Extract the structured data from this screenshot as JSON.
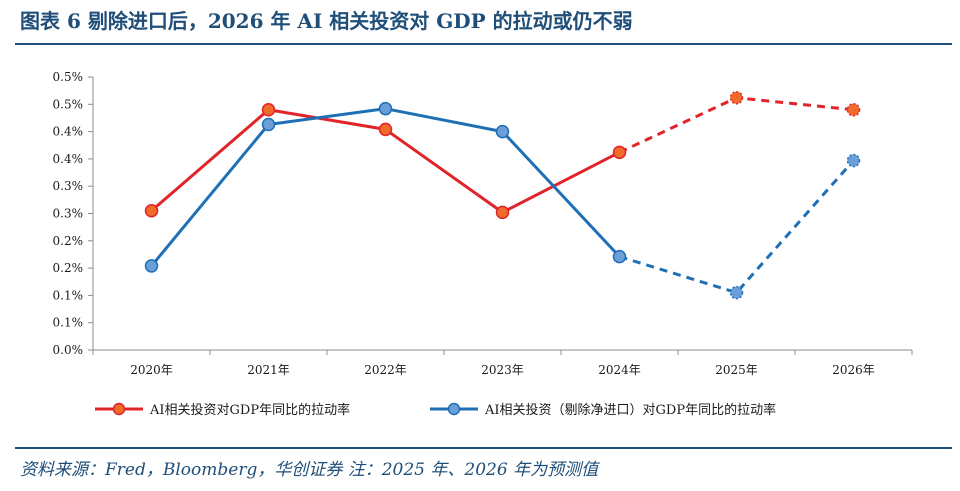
{
  "header": {
    "title": "图表 6   剔除进口后，2026 年 AI 相关投资对 GDP 的拉动或仍不弱"
  },
  "footer": {
    "source": "资料来源：Fred，Bloomberg，华创证券   注：2025 年、2026 年为预测值"
  },
  "chart_data": {
    "type": "line",
    "categories": [
      "2020年",
      "2021年",
      "2022年",
      "2023年",
      "2024年",
      "2025年",
      "2026年"
    ],
    "y_ticks": [
      "0.0%",
      "0.1%",
      "0.1%",
      "0.2%",
      "0.2%",
      "0.3%",
      "0.3%",
      "0.4%",
      "0.4%",
      "0.5%",
      "0.5%"
    ],
    "ylim": [
      0,
      0.5
    ],
    "grid": false,
    "legend_position": "bottom",
    "forecast_from_index": 4,
    "series": [
      {
        "name": "AI相关投资对GDP年同比的拉动率",
        "color": "#e0242a",
        "marker_fill": "#f06b2a",
        "values": [
          0.255,
          0.44,
          0.404,
          0.252,
          0.362,
          0.462,
          0.44
        ]
      },
      {
        "name": "AI相关投资（剔除净进口）对GDP年同比的拉动率",
        "color": "#1f6fb5",
        "marker_fill": "#6a9fd8",
        "values": [
          0.154,
          0.413,
          0.442,
          0.4,
          0.171,
          0.105,
          0.347
        ]
      }
    ]
  }
}
